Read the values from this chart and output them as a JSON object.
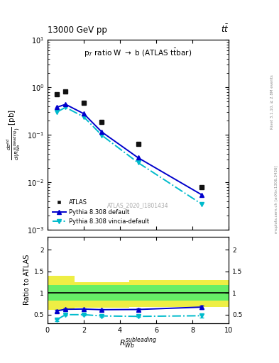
{
  "title_top": "13000 GeV pp",
  "title_right": "t$\\bar{t}$",
  "plot_title": "p$_T$ ratio W $\\rightarrow$ b (ATLAS t$\\bar{t}$bar)",
  "watermark": "ATLAS_2020_I1801434",
  "right_label": "mcplots.cern.ch [arXiv:1306.3436]",
  "right_label2": "Rivet 3.1.10, ≥ 2.8M events",
  "atlas_x": [
    0.5,
    1.0,
    2.0,
    3.0,
    5.0,
    8.5
  ],
  "atlas_y": [
    0.72,
    0.82,
    0.48,
    0.19,
    0.065,
    0.008
  ],
  "pythia_default_x": [
    0.5,
    1.0,
    2.0,
    3.0,
    5.0,
    8.5
  ],
  "pythia_default_y": [
    0.38,
    0.44,
    0.28,
    0.115,
    0.033,
    0.0055
  ],
  "pythia_vincia_x": [
    0.5,
    1.0,
    2.0,
    3.0,
    5.0,
    8.5
  ],
  "pythia_vincia_y": [
    0.3,
    0.38,
    0.24,
    0.098,
    0.026,
    0.0035
  ],
  "ratio_default_x": [
    0.5,
    1.0,
    2.0,
    3.0,
    5.0,
    8.5
  ],
  "ratio_default_y": [
    0.58,
    0.62,
    0.625,
    0.61,
    0.615,
    0.67
  ],
  "ratio_default_err": [
    0.025,
    0.018,
    0.018,
    0.018,
    0.018,
    0.04
  ],
  "ratio_vincia_x": [
    0.5,
    1.0,
    2.0,
    3.0,
    5.0,
    8.5
  ],
  "ratio_vincia_y": [
    0.375,
    0.495,
    0.495,
    0.465,
    0.455,
    0.47
  ],
  "ratio_vincia_err": [
    0.025,
    0.018,
    0.018,
    0.018,
    0.018,
    0.04
  ],
  "green_color": "#66ee66",
  "yellow_color": "#eeee44",
  "atlas_color": "#111111",
  "pythia_default_color": "#0000cc",
  "pythia_vincia_color": "#00bbcc",
  "xlim": [
    0,
    10
  ],
  "ylim_main": [
    0.001,
    10
  ],
  "ylim_ratio_lo": 0.3,
  "ylim_ratio_hi": 2.3,
  "xlabel": "R$_{Wb}^{subleading}$",
  "ylabel_ratio": "Ratio to ATLAS"
}
